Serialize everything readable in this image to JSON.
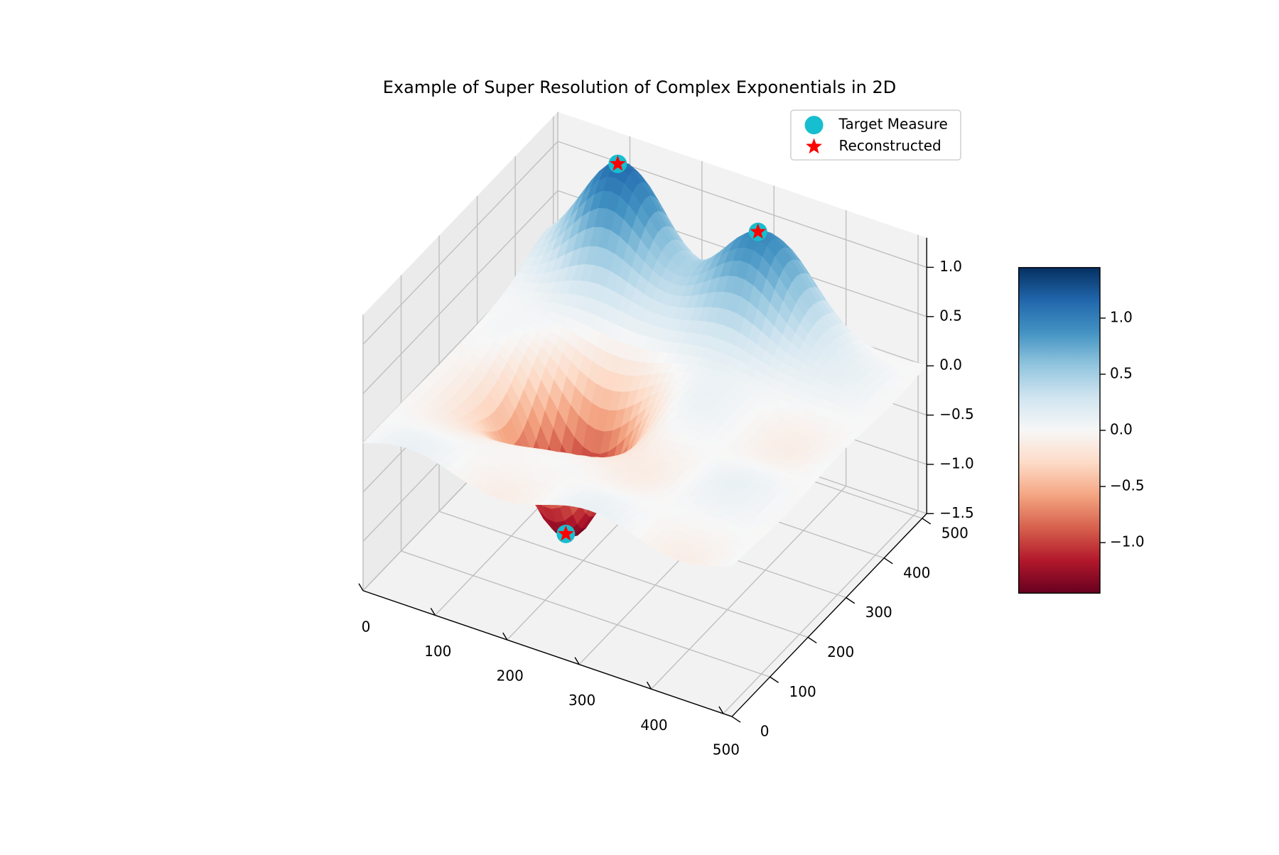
{
  "chart_data": {
    "type": "surface3d",
    "title": "Example of Super Resolution of Complex Exponentials in 2D",
    "xlabel": "",
    "ylabel": "",
    "zlabel": "",
    "xlim": [
      0,
      512
    ],
    "ylim": [
      0,
      512
    ],
    "zlim": [
      -1.5,
      1.3
    ],
    "x_ticks": [
      0,
      100,
      200,
      300,
      400,
      500
    ],
    "x_tick_labels": [
      "0",
      "100",
      "200",
      "300",
      "400",
      "500"
    ],
    "y_ticks": [
      0,
      100,
      200,
      300,
      400,
      500
    ],
    "y_tick_labels": [
      "0",
      "100",
      "200",
      "300",
      "400",
      "500"
    ],
    "z_ticks": [
      -1.5,
      -1.0,
      -0.5,
      0.0,
      0.5,
      1.0
    ],
    "z_tick_labels": [
      "−1.5",
      "−1.0",
      "−0.5",
      "0.0",
      "0.5",
      "1.0"
    ],
    "colormap": "RdBu",
    "colormap_stops": [
      "#67001f",
      "#b2182b",
      "#d6604d",
      "#f4a582",
      "#fddbc7",
      "#f7f7f7",
      "#d1e5f0",
      "#92c5de",
      "#4393c3",
      "#2166ac",
      "#053061"
    ],
    "colorbar": {
      "range": [
        -1.45,
        1.45
      ],
      "ticks": [
        1.0,
        0.5,
        0.0,
        -0.5,
        -1.0
      ],
      "tick_labels": [
        "1.0",
        "0.5",
        "0.0",
        "−0.5",
        "−1.0"
      ]
    },
    "legend": {
      "position": "top-right",
      "entries": [
        {
          "label": "Target Measure",
          "marker": "circle",
          "color": "#17becf"
        },
        {
          "label": "Reconstructed",
          "marker": "star",
          "color": "#ff0000"
        }
      ]
    },
    "series": [
      {
        "name": "Target Measure",
        "points": [
          {
            "x": 160,
            "y": 230,
            "z": -1.45
          },
          {
            "x": 100,
            "y": 480,
            "z": 1.15
          },
          {
            "x": 300,
            "y": 470,
            "z": 1.0
          }
        ]
      },
      {
        "name": "Reconstructed",
        "points": [
          {
            "x": 160,
            "y": 230,
            "z": -1.45
          },
          {
            "x": 100,
            "y": 480,
            "z": 1.15
          },
          {
            "x": 300,
            "y": 470,
            "z": 1.0
          }
        ]
      }
    ],
    "grid": true
  }
}
